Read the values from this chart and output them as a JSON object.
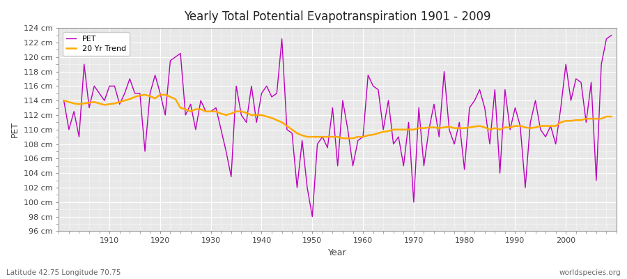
{
  "title": "Yearly Total Potential Evapotranspiration 1901 - 2009",
  "xlabel": "Year",
  "ylabel": "PET",
  "footnote_left": "Latitude 42.75 Longitude 70.75",
  "footnote_right": "worldspecies.org",
  "pet_color": "#bb00bb",
  "trend_color": "#ffaa00",
  "bg_color": "#ffffff",
  "plot_bg_color": "#e8e8e8",
  "ylim": [
    96,
    124
  ],
  "ytick_step": 2,
  "years": [
    1901,
    1902,
    1903,
    1904,
    1905,
    1906,
    1907,
    1908,
    1909,
    1910,
    1911,
    1912,
    1913,
    1914,
    1915,
    1916,
    1917,
    1918,
    1919,
    1920,
    1921,
    1922,
    1923,
    1924,
    1925,
    1926,
    1927,
    1928,
    1929,
    1930,
    1931,
    1932,
    1933,
    1934,
    1935,
    1936,
    1937,
    1938,
    1939,
    1940,
    1941,
    1942,
    1943,
    1944,
    1945,
    1946,
    1947,
    1948,
    1949,
    1950,
    1951,
    1952,
    1953,
    1954,
    1955,
    1956,
    1957,
    1958,
    1959,
    1960,
    1961,
    1962,
    1963,
    1964,
    1965,
    1966,
    1967,
    1968,
    1969,
    1970,
    1971,
    1972,
    1973,
    1974,
    1975,
    1976,
    1977,
    1978,
    1979,
    1980,
    1981,
    1982,
    1983,
    1984,
    1985,
    1986,
    1987,
    1988,
    1989,
    1990,
    1991,
    1992,
    1993,
    1994,
    1995,
    1996,
    1997,
    1998,
    1999,
    2000,
    2001,
    2002,
    2003,
    2004,
    2005,
    2006,
    2007,
    2008,
    2009
  ],
  "pet_values": [
    114.0,
    110.0,
    112.5,
    109.0,
    119.0,
    113.0,
    116.0,
    115.0,
    114.0,
    116.0,
    116.0,
    113.5,
    115.0,
    117.0,
    115.0,
    115.0,
    107.0,
    115.0,
    117.5,
    115.0,
    112.0,
    119.5,
    120.0,
    120.5,
    112.0,
    113.5,
    110.0,
    114.0,
    112.5,
    112.5,
    113.0,
    110.0,
    107.0,
    103.5,
    116.0,
    112.0,
    111.0,
    116.0,
    111.0,
    115.0,
    116.0,
    114.5,
    115.0,
    122.5,
    110.0,
    109.5,
    102.0,
    108.5,
    102.0,
    98.0,
    108.0,
    109.0,
    107.5,
    113.0,
    105.0,
    114.0,
    110.0,
    105.0,
    108.5,
    109.0,
    117.5,
    116.0,
    115.5,
    110.0,
    114.0,
    108.0,
    109.0,
    105.0,
    111.0,
    100.0,
    113.0,
    105.0,
    110.0,
    113.5,
    109.0,
    118.0,
    110.0,
    108.0,
    111.0,
    104.5,
    113.0,
    114.0,
    115.5,
    113.0,
    108.0,
    115.5,
    104.0,
    115.5,
    110.0,
    113.0,
    110.5,
    102.0,
    111.0,
    114.0,
    110.0,
    109.0,
    110.5,
    108.0,
    113.0,
    119.0,
    114.0,
    117.0,
    116.5,
    111.0,
    116.5,
    103.0,
    119.0,
    122.5,
    123.0
  ],
  "trend_values": [
    114.0,
    113.8,
    113.6,
    113.5,
    113.6,
    113.7,
    113.8,
    113.6,
    113.4,
    113.5,
    113.6,
    113.8,
    114.0,
    114.2,
    114.5,
    114.7,
    114.8,
    114.6,
    114.3,
    114.8,
    114.8,
    114.5,
    114.2,
    113.0,
    112.8,
    112.5,
    112.8,
    112.8,
    112.5,
    112.5,
    112.5,
    112.2,
    112.0,
    112.2,
    112.5,
    112.5,
    112.3,
    112.0,
    112.0,
    112.0,
    111.8,
    111.6,
    111.3,
    111.0,
    110.5,
    110.0,
    109.5,
    109.2,
    109.0,
    109.0,
    109.0,
    109.0,
    109.0,
    109.0,
    109.0,
    108.8,
    108.8,
    108.8,
    109.0,
    109.0,
    109.2,
    109.3,
    109.5,
    109.7,
    109.8,
    110.0,
    110.0,
    110.0,
    110.0,
    110.0,
    110.2,
    110.2,
    110.3,
    110.3,
    110.2,
    110.3,
    110.4,
    110.2,
    110.2,
    110.2,
    110.3,
    110.4,
    110.5,
    110.3,
    110.0,
    110.2,
    110.0,
    110.3,
    110.3,
    110.5,
    110.5,
    110.3,
    110.2,
    110.3,
    110.5,
    110.5,
    110.5,
    110.5,
    111.0,
    111.2,
    111.2,
    111.3,
    111.3,
    111.5,
    111.5,
    111.5,
    111.5,
    111.8,
    111.8
  ]
}
